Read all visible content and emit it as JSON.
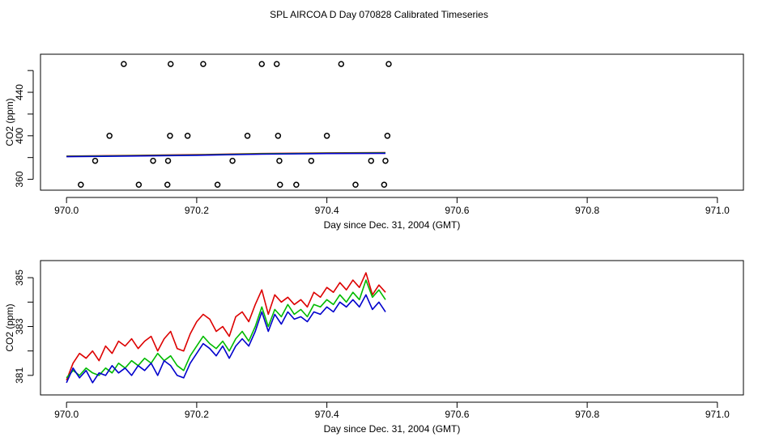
{
  "title": "SPL AIRCOA D  Day 070828  Calibrated Timeseries",
  "colors": {
    "red": "#dd0000",
    "green": "#00bb00",
    "blue": "#0000cc",
    "magenta": "#cc00cc",
    "axis": "#000000"
  },
  "chart_data": [
    {
      "type": "scatter",
      "name": "top-panel",
      "xlabel": "Day since Dec. 31, 2004 (GMT)",
      "ylabel": "CO2 (ppm)",
      "xlim": [
        969.96,
        971.04
      ],
      "ylim": [
        350,
        475
      ],
      "xticks": [
        970.0,
        970.2,
        970.4,
        970.6,
        970.8,
        971.0
      ],
      "xtick_labels": [
        "970.0",
        "970.2",
        "970.4",
        "970.6",
        "970.8",
        "971.0"
      ],
      "yticks": [
        360,
        380,
        400,
        420,
        440,
        460
      ],
      "ytick_labels": [
        "360",
        "",
        "400",
        "",
        "440",
        ""
      ],
      "points": [
        [
          970.088,
          466
        ],
        [
          970.16,
          466
        ],
        [
          970.21,
          466
        ],
        [
          970.3,
          466
        ],
        [
          970.323,
          466
        ],
        [
          970.422,
          466
        ],
        [
          970.495,
          466
        ],
        [
          970.066,
          400
        ],
        [
          970.159,
          400
        ],
        [
          970.186,
          400
        ],
        [
          970.278,
          400
        ],
        [
          970.325,
          400
        ],
        [
          970.4,
          400
        ],
        [
          970.493,
          400
        ],
        [
          970.044,
          377
        ],
        [
          970.133,
          377
        ],
        [
          970.156,
          377
        ],
        [
          970.255,
          377
        ],
        [
          970.327,
          377
        ],
        [
          970.376,
          377
        ],
        [
          970.468,
          377
        ],
        [
          970.49,
          377
        ],
        [
          970.022,
          355
        ],
        [
          970.111,
          355
        ],
        [
          970.155,
          355
        ],
        [
          970.232,
          355
        ],
        [
          970.328,
          355
        ],
        [
          970.353,
          355
        ],
        [
          970.444,
          355
        ],
        [
          970.488,
          355
        ]
      ],
      "series": [
        {
          "name": "magenta",
          "color": "magenta",
          "x": [
            970.0,
            970.1,
            970.2,
            970.3,
            970.4,
            970.49
          ],
          "values": [
            381.0,
            381.6,
            382.3,
            383.3,
            383.9,
            384.0
          ]
        },
        {
          "name": "red",
          "color": "red",
          "x": [
            970.0,
            970.1,
            970.2,
            970.3,
            970.4,
            970.49
          ],
          "values": [
            381.3,
            381.9,
            382.7,
            383.7,
            384.3,
            384.6
          ]
        },
        {
          "name": "green",
          "color": "green",
          "x": [
            970.0,
            970.1,
            970.2,
            970.3,
            970.4,
            970.49
          ],
          "values": [
            381.1,
            381.7,
            382.4,
            383.4,
            384.0,
            384.3
          ]
        },
        {
          "name": "blue",
          "color": "blue",
          "x": [
            970.0,
            970.1,
            970.2,
            970.3,
            970.4,
            970.49
          ],
          "values": [
            380.8,
            381.4,
            382.1,
            383.1,
            383.7,
            383.9
          ]
        }
      ]
    },
    {
      "type": "line",
      "name": "bottom-panel",
      "xlabel": "Day since Dec. 31, 2004 (GMT)",
      "ylabel": "CO2 (ppm)",
      "xlim": [
        969.96,
        971.04
      ],
      "ylim": [
        380.2,
        385.7
      ],
      "xticks": [
        970.0,
        970.2,
        970.4,
        970.6,
        970.8,
        971.0
      ],
      "xtick_labels": [
        "970.0",
        "970.2",
        "970.4",
        "970.6",
        "970.8",
        "971.0"
      ],
      "yticks": [
        381,
        382,
        383,
        384,
        385
      ],
      "ytick_labels": [
        "381",
        "",
        "383",
        "",
        "385"
      ],
      "x": [
        970.0,
        970.01,
        970.02,
        970.03,
        970.04,
        970.05,
        970.06,
        970.07,
        970.08,
        970.09,
        970.1,
        970.11,
        970.12,
        970.13,
        970.14,
        970.15,
        970.16,
        970.17,
        970.18,
        970.19,
        970.2,
        970.21,
        970.22,
        970.23,
        970.24,
        970.25,
        970.26,
        970.27,
        970.28,
        970.29,
        970.3,
        970.31,
        970.32,
        970.33,
        970.34,
        970.35,
        970.36,
        970.37,
        970.38,
        970.39,
        970.4,
        970.41,
        970.42,
        970.43,
        970.44,
        970.45,
        970.46,
        970.47,
        970.48,
        970.49
      ],
      "series": [
        {
          "name": "red",
          "color": "red",
          "values": [
            380.8,
            381.5,
            381.9,
            381.7,
            382.0,
            381.6,
            382.2,
            381.9,
            382.4,
            382.2,
            382.5,
            382.1,
            382.4,
            382.6,
            382.0,
            382.5,
            382.8,
            382.1,
            382.0,
            382.7,
            383.2,
            383.5,
            383.3,
            382.8,
            383.0,
            382.6,
            383.4,
            383.6,
            383.2,
            383.9,
            384.5,
            383.5,
            384.3,
            384.0,
            384.2,
            383.9,
            384.1,
            383.8,
            384.4,
            384.2,
            384.6,
            384.4,
            384.8,
            384.5,
            384.9,
            384.6,
            385.2,
            384.3,
            384.7,
            384.4
          ]
        },
        {
          "name": "green",
          "color": "green",
          "values": [
            380.9,
            381.2,
            381.0,
            381.3,
            381.1,
            381.0,
            381.3,
            381.1,
            381.5,
            381.3,
            381.6,
            381.4,
            381.7,
            381.5,
            381.9,
            381.6,
            381.8,
            381.4,
            381.2,
            381.8,
            382.2,
            382.6,
            382.3,
            382.1,
            382.4,
            382.0,
            382.5,
            382.8,
            382.4,
            383.0,
            383.8,
            383.0,
            383.7,
            383.4,
            383.9,
            383.5,
            383.7,
            383.4,
            383.9,
            383.8,
            384.1,
            383.9,
            384.3,
            384.0,
            384.4,
            384.1,
            384.9,
            384.2,
            384.5,
            384.1
          ]
        },
        {
          "name": "blue",
          "color": "blue",
          "values": [
            380.7,
            381.3,
            380.9,
            381.2,
            380.7,
            381.1,
            381.0,
            381.4,
            381.1,
            381.3,
            381.0,
            381.4,
            381.2,
            381.5,
            381.0,
            381.6,
            381.4,
            381.0,
            380.9,
            381.5,
            381.9,
            382.3,
            382.1,
            381.8,
            382.2,
            381.7,
            382.2,
            382.5,
            382.2,
            382.8,
            383.6,
            382.8,
            383.5,
            383.1,
            383.6,
            383.3,
            383.4,
            383.2,
            383.6,
            383.5,
            383.8,
            383.6,
            384.0,
            383.8,
            384.1,
            383.8,
            384.3,
            383.7,
            384.0,
            383.6
          ]
        }
      ]
    }
  ]
}
